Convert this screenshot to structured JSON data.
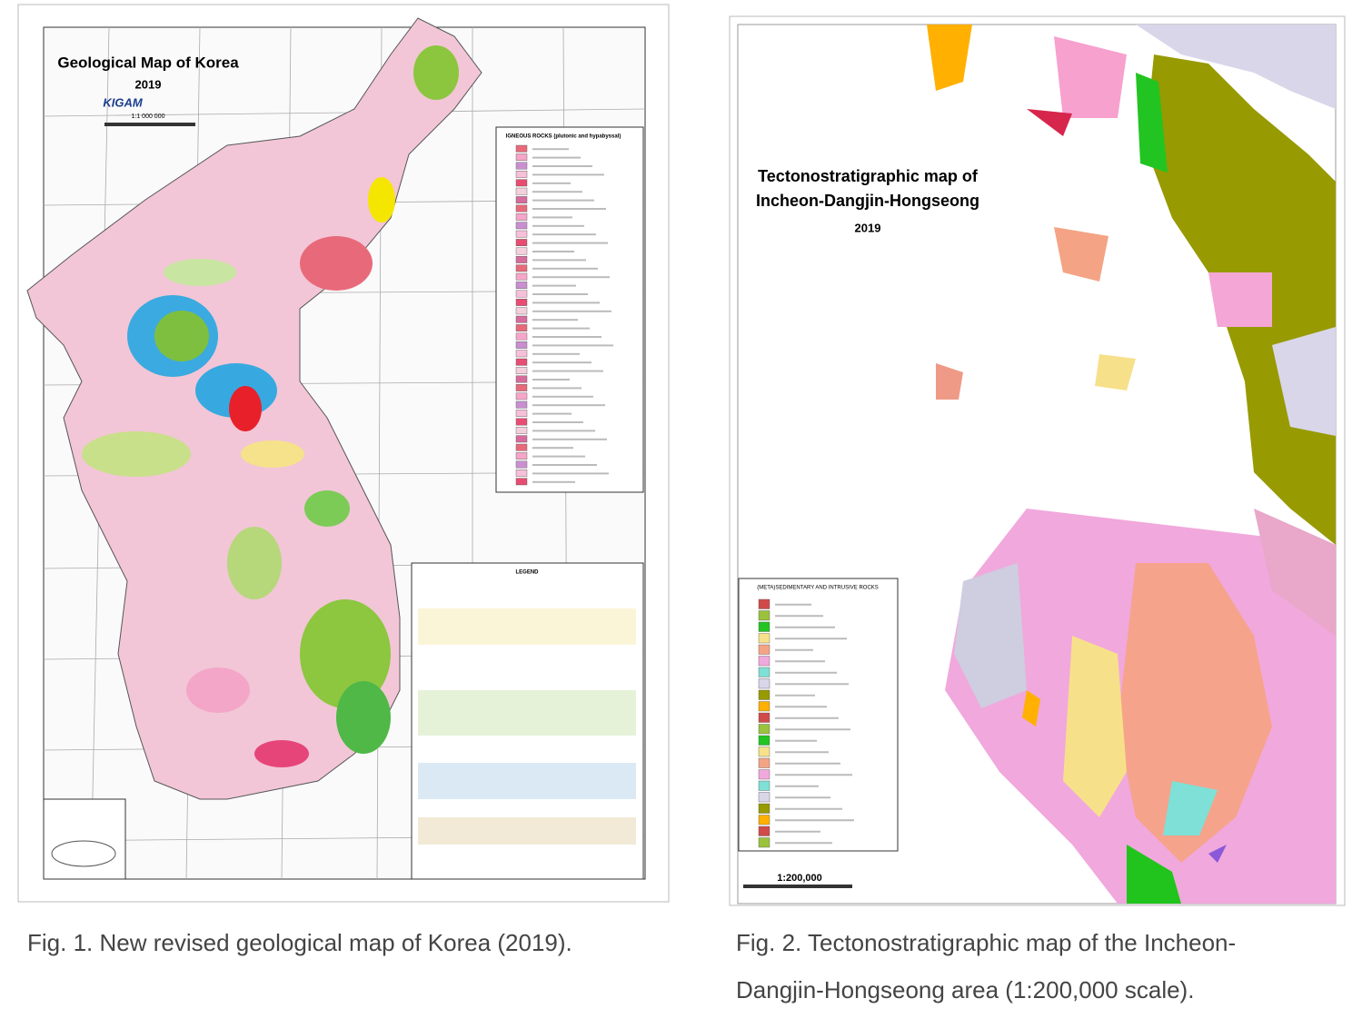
{
  "figures": [
    {
      "map": {
        "title": "Geological Map of Korea",
        "year": "2019",
        "logo": "KIGAM",
        "scale": "1:1 000 000",
        "legend_igneous": "IGNEOUS ROCKS (plutonic and hypabyssal)",
        "legend_sedimentary": "LEGEND"
      },
      "caption": [
        "Fig. 1. New revised geological map of Korea (2019)."
      ]
    },
    {
      "map": {
        "title": [
          "Tectonostratigraphic map of",
          "Incheon-Dangjin-Hongseong"
        ],
        "year": "2019",
        "scale": "1:200,000",
        "legend": "(META)SEDIMENTARY AND INTRUSIVE ROCKS"
      },
      "caption": [
        "Fig. 2. Tectonostratigraphic map of the Incheon-",
        "Dangjin-Hongseong area (1:200,000 scale)."
      ]
    }
  ]
}
